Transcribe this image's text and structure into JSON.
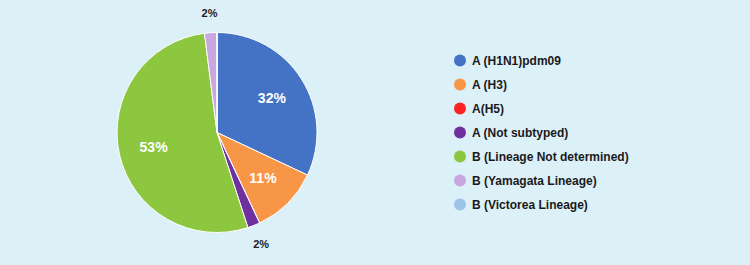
{
  "chart_data": {
    "type": "pie",
    "categories": [
      "A (H1N1)pdm09",
      "A (H3)",
      "A(H5)",
      "A (Not subtyped)",
      "B (Lineage Not determined)",
      "B (Yamagata Lineage)",
      "B (Victorea Lineage)"
    ],
    "values": [
      32,
      11,
      0,
      2,
      53,
      2,
      0
    ],
    "value_labels": [
      "32%",
      "11%",
      null,
      "2%",
      "53%",
      "2%",
      null
    ],
    "colors": [
      "#4472C4",
      "#F79646",
      "#FF2222",
      "#7030A0",
      "#8DC63F",
      "#C9A8E0",
      "#9DC3E6"
    ],
    "data_labels": true,
    "legend": "right"
  }
}
